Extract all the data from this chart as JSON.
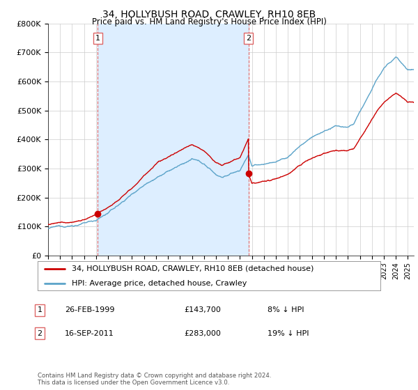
{
  "title": "34, HOLLYBUSH ROAD, CRAWLEY, RH10 8EB",
  "subtitle": "Price paid vs. HM Land Registry's House Price Index (HPI)",
  "legend_line1": "34, HOLLYBUSH ROAD, CRAWLEY, RH10 8EB (detached house)",
  "legend_line2": "HPI: Average price, detached house, Crawley",
  "sale1_label": "1",
  "sale1_date": "26-FEB-1999",
  "sale1_price": "£143,700",
  "sale1_hpi": "8% ↓ HPI",
  "sale2_label": "2",
  "sale2_date": "16-SEP-2011",
  "sale2_price": "£283,000",
  "sale2_hpi": "19% ↓ HPI",
  "footnote": "Contains HM Land Registry data © Crown copyright and database right 2024.\nThis data is licensed under the Open Government Licence v3.0.",
  "red_color": "#cc0000",
  "blue_color": "#5ba3c9",
  "shade_color": "#ddeeff",
  "vline_color": "#dd6666",
  "background_color": "#ffffff",
  "grid_color": "#cccccc",
  "ylim_min": 0,
  "ylim_max": 800000,
  "ytick_vals": [
    0,
    100000,
    200000,
    300000,
    400000,
    500000,
    600000,
    700000,
    800000
  ],
  "ytick_labels": [
    "£0",
    "£100K",
    "£200K",
    "£300K",
    "£400K",
    "£500K",
    "£600K",
    "£700K",
    "£800K"
  ],
  "sale1_year": 1999.15,
  "sale1_value": 143700,
  "sale2_year": 2011.71,
  "sale2_value": 283000,
  "xmin": 1995.0,
  "xmax": 2025.5
}
